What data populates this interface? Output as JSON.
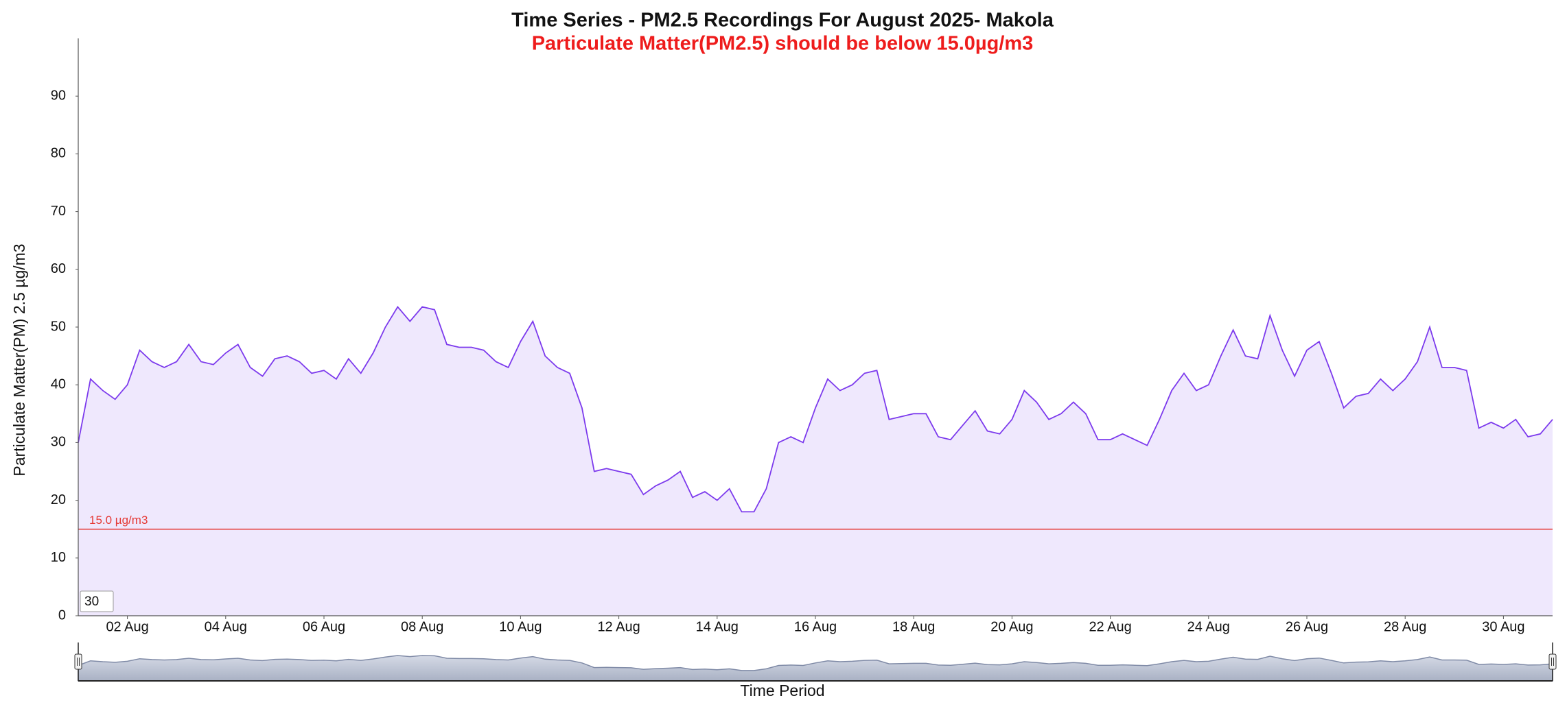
{
  "chart_data": {
    "type": "area",
    "title": "Time Series - PM2.5 Recordings For August 2025- Makola",
    "subtitle": "Particulate Matter(PM2.5) should be below 15.0µg/m3",
    "y_label": "Particulate Matter(PM) 2.5 µg/m3",
    "x_label": "Time Period",
    "range_input": "30",
    "color": "#7c3aed",
    "fill": "#efe8fd",
    "threshold": {
      "value": 15,
      "label": "15.0 µg/m3",
      "color": "#e53935"
    },
    "xlim": [
      1,
      31
    ],
    "ylim": [
      0,
      100
    ],
    "yticks": [
      0,
      10,
      20,
      30,
      40,
      50,
      60,
      70,
      80,
      90
    ],
    "xticks": [
      {
        "value": 2,
        "label": "02 Aug"
      },
      {
        "value": 4,
        "label": "04 Aug"
      },
      {
        "value": 6,
        "label": "06 Aug"
      },
      {
        "value": 8,
        "label": "08 Aug"
      },
      {
        "value": 10,
        "label": "10 Aug"
      },
      {
        "value": 12,
        "label": "12 Aug"
      },
      {
        "value": 14,
        "label": "14 Aug"
      },
      {
        "value": 16,
        "label": "16 Aug"
      },
      {
        "value": 18,
        "label": "18 Aug"
      },
      {
        "value": 20,
        "label": "20 Aug"
      },
      {
        "value": 22,
        "label": "22 Aug"
      },
      {
        "value": 24,
        "label": "24 Aug"
      },
      {
        "value": 26,
        "label": "26 Aug"
      },
      {
        "value": 28,
        "label": "28 Aug"
      },
      {
        "value": 30,
        "label": "30 Aug"
      }
    ],
    "x": [
      1,
      1.25,
      1.5,
      1.75,
      2,
      2.25,
      2.5,
      2.75,
      3,
      3.25,
      3.5,
      3.75,
      4,
      4.25,
      4.5,
      4.75,
      5,
      5.25,
      5.5,
      5.75,
      6,
      6.25,
      6.5,
      6.75,
      7,
      7.25,
      7.5,
      7.75,
      8,
      8.25,
      8.5,
      8.75,
      9,
      9.25,
      9.5,
      9.75,
      10,
      10.25,
      10.5,
      10.75,
      11,
      11.25,
      11.5,
      11.75,
      12,
      12.25,
      12.5,
      12.75,
      13,
      13.25,
      13.5,
      13.75,
      14,
      14.25,
      14.5,
      14.75,
      15,
      15.25,
      15.5,
      15.75,
      16,
      16.25,
      16.5,
      16.75,
      17,
      17.25,
      17.5,
      17.75,
      18,
      18.25,
      18.5,
      18.75,
      19,
      19.25,
      19.5,
      19.75,
      20,
      20.25,
      20.5,
      20.75,
      21,
      21.25,
      21.5,
      21.75,
      22,
      22.25,
      22.5,
      22.75,
      23,
      23.25,
      23.5,
      23.75,
      24,
      24.25,
      24.5,
      24.75,
      25,
      25.25,
      25.5,
      25.75,
      26,
      26.25,
      26.5,
      26.75,
      27,
      27.25,
      27.5,
      27.75,
      28,
      28.25,
      28.5,
      28.75,
      29,
      29.25,
      29.5,
      29.75,
      30,
      30.25,
      30.5,
      30.75,
      31
    ],
    "values": [
      30,
      41,
      39,
      37.5,
      40,
      46,
      44,
      43,
      44,
      47,
      44,
      43.5,
      45.5,
      47,
      43,
      41.5,
      44.5,
      45,
      44,
      42,
      42.5,
      41,
      44.5,
      42,
      45.5,
      50,
      53.5,
      51,
      53.5,
      53,
      47,
      46.5,
      46.5,
      46,
      44,
      43,
      47.5,
      51,
      45,
      43,
      42,
      36,
      25,
      25.5,
      25,
      24.5,
      21,
      22.5,
      23.5,
      25,
      20.5,
      21.5,
      20,
      22,
      18,
      18,
      22,
      30,
      31,
      30,
      36,
      41,
      39,
      40,
      42,
      42.5,
      34,
      34.5,
      35,
      35,
      31,
      30.5,
      33,
      35.5,
      32,
      31.5,
      34,
      39,
      37,
      34,
      35,
      37,
      35,
      30.5,
      30.5,
      31.5,
      30.5,
      29.5,
      34,
      39,
      42,
      39,
      40,
      45,
      49.5,
      45,
      44.5,
      52,
      46,
      41.5,
      46,
      47.5,
      42,
      36,
      38,
      38.5,
      41,
      39,
      41,
      44,
      50,
      43,
      43,
      42.5,
      32.5,
      33.5,
      32.5,
      34,
      31,
      31.5,
      34
    ]
  }
}
